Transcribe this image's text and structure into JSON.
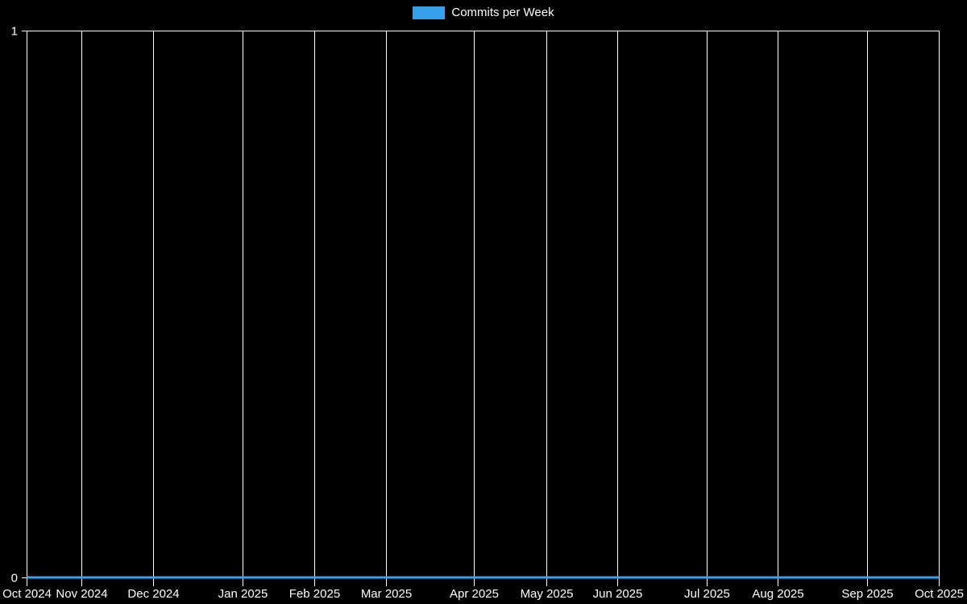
{
  "window": {
    "background_color": "#000000"
  },
  "legend": {
    "label": "Commits per Week",
    "swatch_color": "#36a2eb"
  },
  "chart_data": {
    "type": "line",
    "title": "Commits per Week",
    "legend_position": "top",
    "grid": true,
    "background_color": "#000000",
    "grid_color": "#ffffff",
    "text_color": "#ffffff",
    "font_size": 15,
    "x_axis_type": "time",
    "x_unit": "week",
    "ylim": [
      0,
      1
    ],
    "y_ticks": [
      {
        "label": "0",
        "value": 0
      },
      {
        "label": "1",
        "value": 1
      }
    ],
    "x_ticks": [
      {
        "label": "Oct 2024",
        "pos": 0.0
      },
      {
        "label": "Nov 2024",
        "pos": 0.0601
      },
      {
        "label": "Dec 2024",
        "pos": 0.1387
      },
      {
        "label": "Jan 2025",
        "pos": 0.2367
      },
      {
        "label": "Feb 2025",
        "pos": 0.3154
      },
      {
        "label": "Mar 2025",
        "pos": 0.394
      },
      {
        "label": "Apr 2025",
        "pos": 0.4903
      },
      {
        "label": "May 2025",
        "pos": 0.5698
      },
      {
        "label": "Jun 2025",
        "pos": 0.6475
      },
      {
        "label": "Jul 2025",
        "pos": 0.7456
      },
      {
        "label": "Aug 2025",
        "pos": 0.8233
      },
      {
        "label": "Sep 2025",
        "pos": 0.9214
      },
      {
        "label": "Oct 2025",
        "pos": 1.0
      }
    ],
    "series": [
      {
        "name": "Commits per Week",
        "color": "#36a2eb",
        "line_width": 3,
        "values": [
          0,
          0,
          0,
          0,
          0,
          0,
          0,
          0,
          0,
          0,
          0,
          0,
          0,
          0,
          0,
          0,
          0,
          0,
          0,
          0,
          0,
          0,
          0,
          0,
          0,
          0,
          0,
          0,
          0,
          0,
          0,
          0,
          0,
          0,
          0,
          0,
          0,
          0,
          0,
          0,
          0,
          0,
          0,
          0,
          0,
          0,
          0,
          0,
          0,
          0,
          0,
          0,
          0
        ]
      }
    ]
  }
}
